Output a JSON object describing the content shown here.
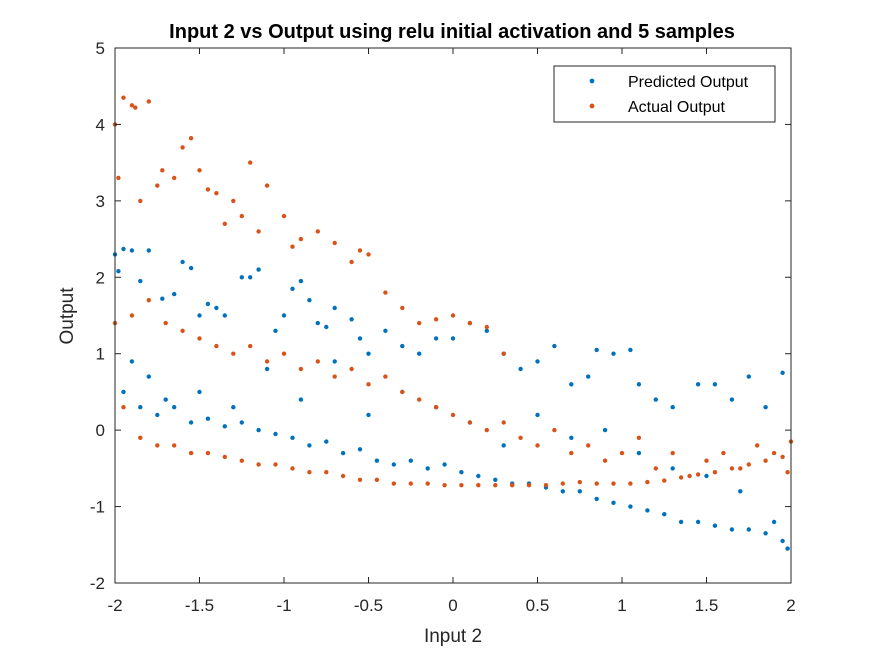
{
  "chart_data": {
    "type": "scatter",
    "title": "Input 2 vs Output using relu initial activation and 5 samples",
    "xlabel": "Input 2",
    "ylabel": "Output",
    "xlim": [
      -2,
      2
    ],
    "ylim": [
      -2,
      5
    ],
    "xticks": [
      -2,
      -1.5,
      -1,
      -0.5,
      0,
      0.5,
      1,
      1.5,
      2
    ],
    "xtick_labels": [
      "-2",
      "-1.5",
      "-1",
      "-0.5",
      "0",
      "0.5",
      "1",
      "1.5",
      "2"
    ],
    "yticks": [
      -2,
      -1,
      0,
      1,
      2,
      3,
      4,
      5
    ],
    "ytick_labels": [
      "-2",
      "-1",
      "0",
      "1",
      "2",
      "3",
      "4",
      "5"
    ],
    "legend_position": "top-right",
    "series": [
      {
        "name": "Predicted Output",
        "color": "#0072BD",
        "points": [
          [
            -2.0,
            2.3
          ],
          [
            -1.98,
            2.08
          ],
          [
            -1.95,
            2.37
          ],
          [
            -1.9,
            2.35
          ],
          [
            -1.85,
            1.95
          ],
          [
            -1.8,
            2.35
          ],
          [
            -1.72,
            1.72
          ],
          [
            -1.65,
            1.78
          ],
          [
            -1.6,
            2.2
          ],
          [
            -1.55,
            2.12
          ],
          [
            -1.5,
            1.5
          ],
          [
            -1.45,
            1.65
          ],
          [
            -1.4,
            1.6
          ],
          [
            -1.35,
            1.5
          ],
          [
            -1.25,
            2.0
          ],
          [
            -1.2,
            2.0
          ],
          [
            -1.15,
            2.1
          ],
          [
            -1.05,
            1.3
          ],
          [
            -1.0,
            1.5
          ],
          [
            -0.95,
            1.85
          ],
          [
            -0.9,
            1.95
          ],
          [
            -0.85,
            1.7
          ],
          [
            -0.8,
            1.4
          ],
          [
            -0.75,
            1.35
          ],
          [
            -0.7,
            1.6
          ],
          [
            -0.6,
            1.45
          ],
          [
            -0.55,
            1.2
          ],
          [
            -0.5,
            1.0
          ],
          [
            -0.4,
            1.3
          ],
          [
            -0.3,
            1.1
          ],
          [
            -0.2,
            1.0
          ],
          [
            -0.1,
            1.2
          ],
          [
            0.0,
            1.2
          ],
          [
            0.1,
            1.4
          ],
          [
            0.2,
            1.3
          ],
          [
            0.3,
            1.0
          ],
          [
            0.4,
            0.8
          ],
          [
            0.5,
            0.9
          ],
          [
            0.6,
            1.1
          ],
          [
            0.7,
            0.6
          ],
          [
            0.8,
            0.7
          ],
          [
            0.85,
            1.05
          ],
          [
            0.95,
            1.0
          ],
          [
            1.05,
            1.05
          ],
          [
            1.1,
            0.6
          ],
          [
            1.2,
            0.4
          ],
          [
            1.3,
            0.3
          ],
          [
            1.45,
            0.6
          ],
          [
            1.55,
            0.6
          ],
          [
            1.65,
            0.4
          ],
          [
            1.75,
            0.7
          ],
          [
            1.85,
            0.3
          ],
          [
            1.95,
            0.75
          ],
          [
            -1.95,
            0.5
          ],
          [
            -1.85,
            0.3
          ],
          [
            -1.75,
            0.2
          ],
          [
            -1.65,
            0.3
          ],
          [
            -1.55,
            0.1
          ],
          [
            -1.45,
            0.15
          ],
          [
            -1.35,
            0.05
          ],
          [
            -1.25,
            0.1
          ],
          [
            -1.15,
            0.0
          ],
          [
            -1.05,
            -0.05
          ],
          [
            -0.95,
            -0.1
          ],
          [
            -0.85,
            -0.2
          ],
          [
            -0.75,
            -0.15
          ],
          [
            -0.65,
            -0.3
          ],
          [
            -0.55,
            -0.25
          ],
          [
            -0.45,
            -0.4
          ],
          [
            -0.35,
            -0.45
          ],
          [
            -0.25,
            -0.4
          ],
          [
            -0.15,
            -0.5
          ],
          [
            -0.05,
            -0.45
          ],
          [
            0.05,
            -0.55
          ],
          [
            0.15,
            -0.6
          ],
          [
            0.25,
            -0.65
          ],
          [
            0.35,
            -0.7
          ],
          [
            0.45,
            -0.7
          ],
          [
            0.55,
            -0.75
          ],
          [
            0.65,
            -0.8
          ],
          [
            0.75,
            -0.8
          ],
          [
            0.85,
            -0.9
          ],
          [
            0.95,
            -0.95
          ],
          [
            1.05,
            -1.0
          ],
          [
            1.15,
            -1.05
          ],
          [
            1.25,
            -1.1
          ],
          [
            1.35,
            -1.2
          ],
          [
            1.45,
            -1.2
          ],
          [
            1.55,
            -1.25
          ],
          [
            1.65,
            -1.3
          ],
          [
            1.75,
            -1.3
          ],
          [
            1.85,
            -1.35
          ],
          [
            1.95,
            -1.45
          ],
          [
            1.98,
            -1.55
          ],
          [
            -1.9,
            0.9
          ],
          [
            -1.8,
            0.7
          ],
          [
            -1.7,
            0.4
          ],
          [
            -1.5,
            0.5
          ],
          [
            -1.3,
            0.3
          ],
          [
            -1.1,
            0.8
          ],
          [
            -0.9,
            0.4
          ],
          [
            -0.7,
            0.9
          ],
          [
            -0.5,
            0.2
          ],
          [
            -0.3,
            0.5
          ],
          [
            -0.1,
            0.3
          ],
          [
            0.1,
            0.1
          ],
          [
            0.3,
            -0.2
          ],
          [
            0.5,
            0.2
          ],
          [
            0.7,
            -0.1
          ],
          [
            0.9,
            0.0
          ],
          [
            1.1,
            -0.3
          ],
          [
            1.3,
            -0.5
          ],
          [
            1.5,
            -0.6
          ],
          [
            1.7,
            -0.8
          ],
          [
            1.9,
            -1.2
          ]
        ]
      },
      {
        "name": "Actual Output",
        "color": "#D95319",
        "points": [
          [
            -2.0,
            4.0
          ],
          [
            -1.98,
            3.3
          ],
          [
            -1.95,
            4.35
          ],
          [
            -1.9,
            4.25
          ],
          [
            -1.88,
            4.22
          ],
          [
            -1.85,
            3.0
          ],
          [
            -1.8,
            4.3
          ],
          [
            -1.75,
            3.2
          ],
          [
            -1.72,
            3.4
          ],
          [
            -1.65,
            3.3
          ],
          [
            -1.6,
            3.7
          ],
          [
            -1.55,
            3.82
          ],
          [
            -1.5,
            3.4
          ],
          [
            -1.45,
            3.15
          ],
          [
            -1.4,
            3.1
          ],
          [
            -1.35,
            2.7
          ],
          [
            -1.3,
            3.0
          ],
          [
            -1.25,
            2.8
          ],
          [
            -1.2,
            3.5
          ],
          [
            -1.15,
            2.6
          ],
          [
            -1.1,
            3.2
          ],
          [
            -1.0,
            2.8
          ],
          [
            -0.95,
            2.4
          ],
          [
            -0.9,
            2.5
          ],
          [
            -0.8,
            2.6
          ],
          [
            -0.7,
            2.45
          ],
          [
            -0.6,
            2.2
          ],
          [
            -0.55,
            2.35
          ],
          [
            -0.5,
            2.3
          ],
          [
            -0.4,
            1.8
          ],
          [
            -0.3,
            1.6
          ],
          [
            -0.2,
            1.4
          ],
          [
            -0.1,
            1.45
          ],
          [
            0.0,
            1.5
          ],
          [
            0.1,
            1.4
          ],
          [
            0.2,
            1.35
          ],
          [
            0.3,
            1.0
          ],
          [
            -2.0,
            1.4
          ],
          [
            -1.9,
            1.5
          ],
          [
            -1.8,
            1.7
          ],
          [
            -1.7,
            1.4
          ],
          [
            -1.6,
            1.3
          ],
          [
            -1.5,
            1.2
          ],
          [
            -1.4,
            1.1
          ],
          [
            -1.3,
            1.0
          ],
          [
            -1.2,
            1.1
          ],
          [
            -1.1,
            0.9
          ],
          [
            -1.0,
            1.0
          ],
          [
            -0.9,
            0.8
          ],
          [
            -0.8,
            0.9
          ],
          [
            -0.7,
            0.7
          ],
          [
            -0.6,
            0.8
          ],
          [
            -0.5,
            0.6
          ],
          [
            -0.4,
            0.7
          ],
          [
            -0.3,
            0.5
          ],
          [
            -0.2,
            0.4
          ],
          [
            -0.1,
            0.3
          ],
          [
            0.0,
            0.2
          ],
          [
            0.1,
            0.1
          ],
          [
            0.2,
            0.0
          ],
          [
            0.3,
            0.1
          ],
          [
            0.4,
            -0.1
          ],
          [
            0.5,
            -0.2
          ],
          [
            0.6,
            0.0
          ],
          [
            0.7,
            -0.3
          ],
          [
            0.8,
            -0.2
          ],
          [
            0.9,
            -0.4
          ],
          [
            1.0,
            -0.3
          ],
          [
            1.1,
            -0.1
          ],
          [
            1.2,
            -0.5
          ],
          [
            1.3,
            -0.3
          ],
          [
            1.4,
            -0.6
          ],
          [
            1.5,
            -0.4
          ],
          [
            1.6,
            -0.3
          ],
          [
            1.7,
            -0.5
          ],
          [
            1.8,
            -0.2
          ],
          [
            1.9,
            -0.3
          ],
          [
            2.0,
            -0.15
          ],
          [
            -1.95,
            0.3
          ],
          [
            -1.85,
            -0.1
          ],
          [
            -1.75,
            -0.2
          ],
          [
            -1.65,
            -0.2
          ],
          [
            -1.55,
            -0.3
          ],
          [
            -1.45,
            -0.3
          ],
          [
            -1.35,
            -0.35
          ],
          [
            -1.25,
            -0.4
          ],
          [
            -1.15,
            -0.45
          ],
          [
            -1.05,
            -0.45
          ],
          [
            -0.95,
            -0.5
          ],
          [
            -0.85,
            -0.55
          ],
          [
            -0.75,
            -0.55
          ],
          [
            -0.65,
            -0.6
          ],
          [
            -0.55,
            -0.65
          ],
          [
            -0.45,
            -0.65
          ],
          [
            -0.35,
            -0.7
          ],
          [
            -0.25,
            -0.7
          ],
          [
            -0.15,
            -0.7
          ],
          [
            -0.05,
            -0.72
          ],
          [
            0.05,
            -0.72
          ],
          [
            0.15,
            -0.72
          ],
          [
            0.25,
            -0.72
          ],
          [
            0.35,
            -0.72
          ],
          [
            0.45,
            -0.72
          ],
          [
            0.55,
            -0.72
          ],
          [
            0.65,
            -0.7
          ],
          [
            0.75,
            -0.68
          ],
          [
            0.85,
            -0.7
          ],
          [
            0.95,
            -0.7
          ],
          [
            1.05,
            -0.7
          ],
          [
            1.15,
            -0.68
          ],
          [
            1.25,
            -0.66
          ],
          [
            1.35,
            -0.62
          ],
          [
            1.45,
            -0.58
          ],
          [
            1.55,
            -0.55
          ],
          [
            1.65,
            -0.5
          ],
          [
            1.75,
            -0.45
          ],
          [
            1.85,
            -0.4
          ],
          [
            1.95,
            -0.35
          ],
          [
            1.98,
            -0.55
          ]
        ]
      }
    ]
  }
}
